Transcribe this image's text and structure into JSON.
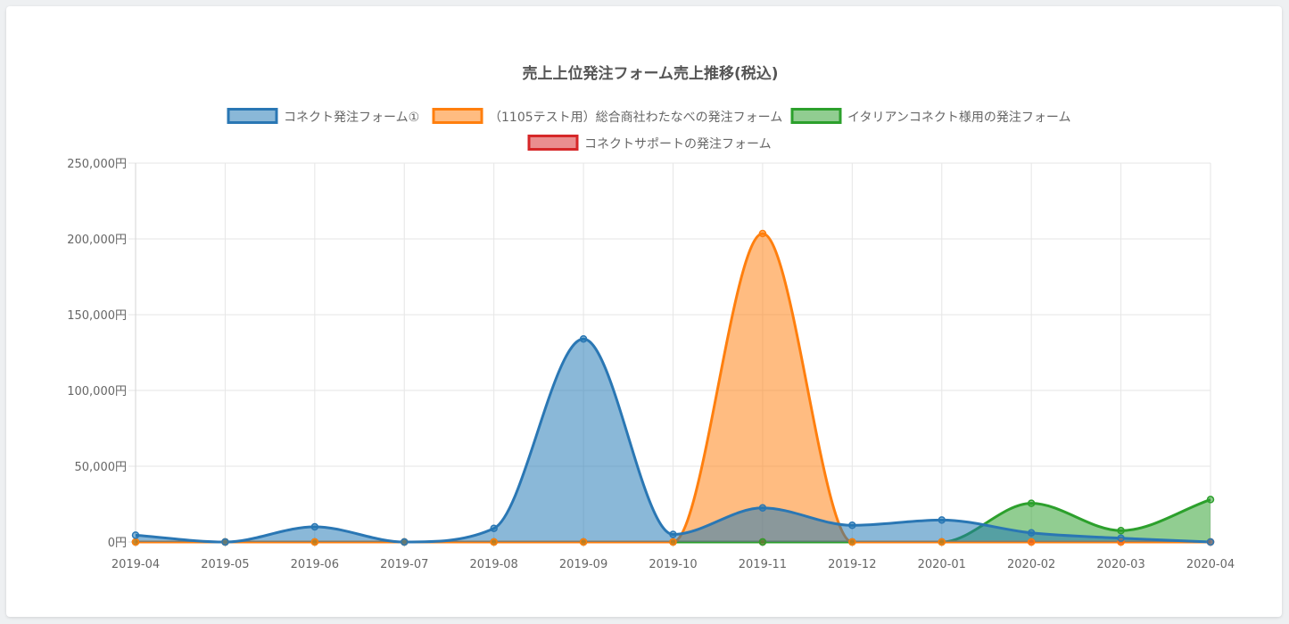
{
  "chart_data": {
    "type": "area",
    "title": "売上上位発注フォーム売上推移(税込)",
    "x": [
      "2019-04",
      "2019-05",
      "2019-06",
      "2019-07",
      "2019-08",
      "2019-09",
      "2019-10",
      "2019-11",
      "2019-12",
      "2020-01",
      "2020-02",
      "2020-03",
      "2020-04"
    ],
    "y_ticks": [
      "0円",
      "50,000円",
      "100,000円",
      "150,000円",
      "200,000円",
      "250,000円"
    ],
    "ylim": [
      0,
      250000
    ],
    "y_unit": "円",
    "grid": true,
    "legend_position": "top",
    "series": [
      {
        "name": "コネクト発注フォーム①",
        "color": "#2a77b4",
        "fill": "rgba(31,119,180,0.52)",
        "values": [
          4500,
          0,
          10000,
          0,
          9000,
          134000,
          5000,
          22500,
          11000,
          14500,
          6000,
          2500,
          0
        ]
      },
      {
        "name": "（1105テスト用）総合商社わたなべの発注フォーム",
        "color": "#ff7f0e",
        "fill": "rgba(255,127,14,0.52)",
        "values": [
          0,
          0,
          0,
          0,
          0,
          0,
          0,
          203500,
          0,
          0,
          0,
          0,
          0
        ]
      },
      {
        "name": "イタリアンコネクト様用の発注フォーム",
        "color": "#2ca02c",
        "fill": "rgba(44,160,44,0.52)",
        "values": [
          0,
          0,
          0,
          0,
          0,
          0,
          0,
          0,
          0,
          0,
          25500,
          7500,
          28000
        ]
      },
      {
        "name": "コネクトサポートの発注フォーム",
        "color": "#d62728",
        "fill": "rgba(214,39,40,0.52)",
        "values": [
          0,
          0,
          0,
          0,
          0,
          0,
          0,
          0,
          0,
          0,
          0,
          0,
          0
        ]
      }
    ]
  }
}
